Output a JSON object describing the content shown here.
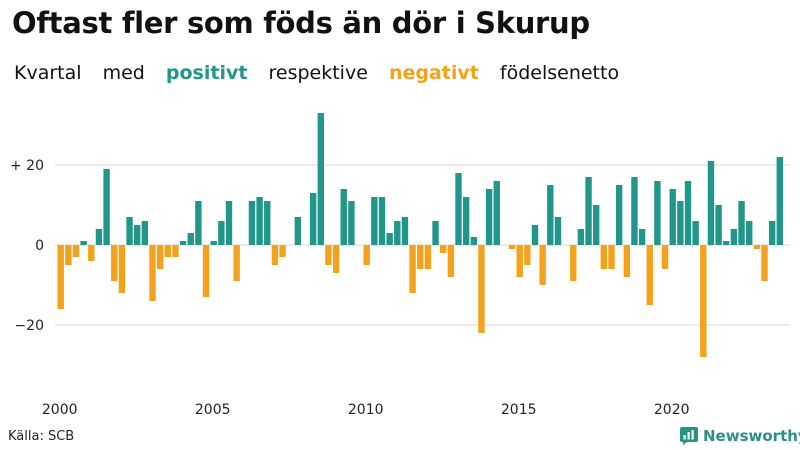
{
  "title": "Oftast fler som föds än dör i Skurup",
  "subtitle": {
    "w1": "Kvartal",
    "w2": "med",
    "positive_word": "positivt",
    "w3": "respektive",
    "negative_word": "negativt",
    "w4": "födelsenetto"
  },
  "source": "Källa: SCB",
  "brand": "Newsworthy",
  "colors": {
    "positive": "#21968a",
    "negative": "#f5a11c",
    "grid": "#d9d9d9",
    "brand": "#2a9185"
  },
  "chart_data": {
    "type": "bar",
    "x_start": "2000 Q1",
    "x_tick_labels": [
      "2000",
      "2005",
      "2010",
      "2015",
      "2020"
    ],
    "y_tick_labels": [
      "+ 20",
      "0",
      "−20"
    ],
    "y_ticks": [
      20,
      0,
      -20
    ],
    "ylim": [
      -30,
      35
    ],
    "grid": true,
    "values": [
      -16,
      -5,
      -3,
      1,
      -4,
      4,
      19,
      -9,
      -12,
      7,
      5,
      6,
      -14,
      -6,
      -3,
      -3,
      1,
      3,
      11,
      -13,
      1,
      6,
      11,
      -9,
      0,
      11,
      12,
      11,
      -5,
      -3,
      0,
      7,
      0,
      13,
      33,
      -5,
      -7,
      14,
      11,
      0,
      -5,
      12,
      12,
      3,
      6,
      7,
      -12,
      -6,
      -6,
      6,
      -2,
      -8,
      18,
      12,
      2,
      -22,
      14,
      16,
      0,
      -1,
      -8,
      -5,
      5,
      -10,
      15,
      7,
      0,
      -9,
      4,
      17,
      10,
      -6,
      -6,
      15,
      -8,
      17,
      4,
      -15,
      16,
      -6,
      14,
      11,
      16,
      6,
      -28,
      21,
      10,
      1,
      4,
      11,
      6,
      -1,
      -9,
      6,
      22
    ]
  }
}
